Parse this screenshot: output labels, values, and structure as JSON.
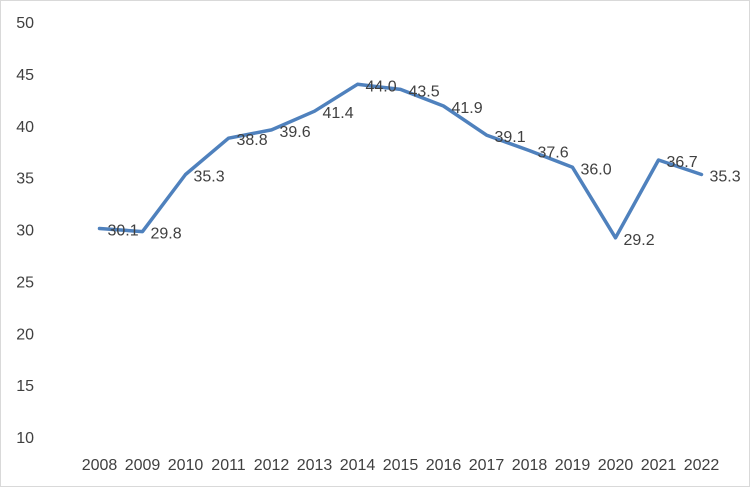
{
  "chart_data": {
    "type": "line",
    "categories": [
      "2008",
      "2009",
      "2010",
      "2011",
      "2012",
      "2013",
      "2014",
      "2015",
      "2016",
      "2017",
      "2018",
      "2019",
      "2020",
      "2021",
      "2022"
    ],
    "series": [
      {
        "values": [
          30.1,
          29.8,
          35.3,
          38.8,
          39.6,
          41.4,
          44.0,
          43.5,
          41.9,
          39.1,
          37.6,
          36.0,
          29.2,
          36.7,
          35.3
        ],
        "labels": [
          "30.1",
          "29.8",
          "35.3",
          "38.8",
          "39.6",
          "41.4",
          "44.0",
          "43.5",
          "41.9",
          "39.1",
          "37.6",
          "36.0",
          "29.2",
          "36.7",
          "35.3"
        ],
        "color": "#4f81bd"
      }
    ],
    "y_ticks": [
      "10",
      "15",
      "20",
      "25",
      "30",
      "35",
      "40",
      "45",
      "50"
    ],
    "ylim": [
      10,
      50
    ],
    "grid": false,
    "legend": "none",
    "title": "",
    "xlabel": "",
    "ylabel": ""
  }
}
